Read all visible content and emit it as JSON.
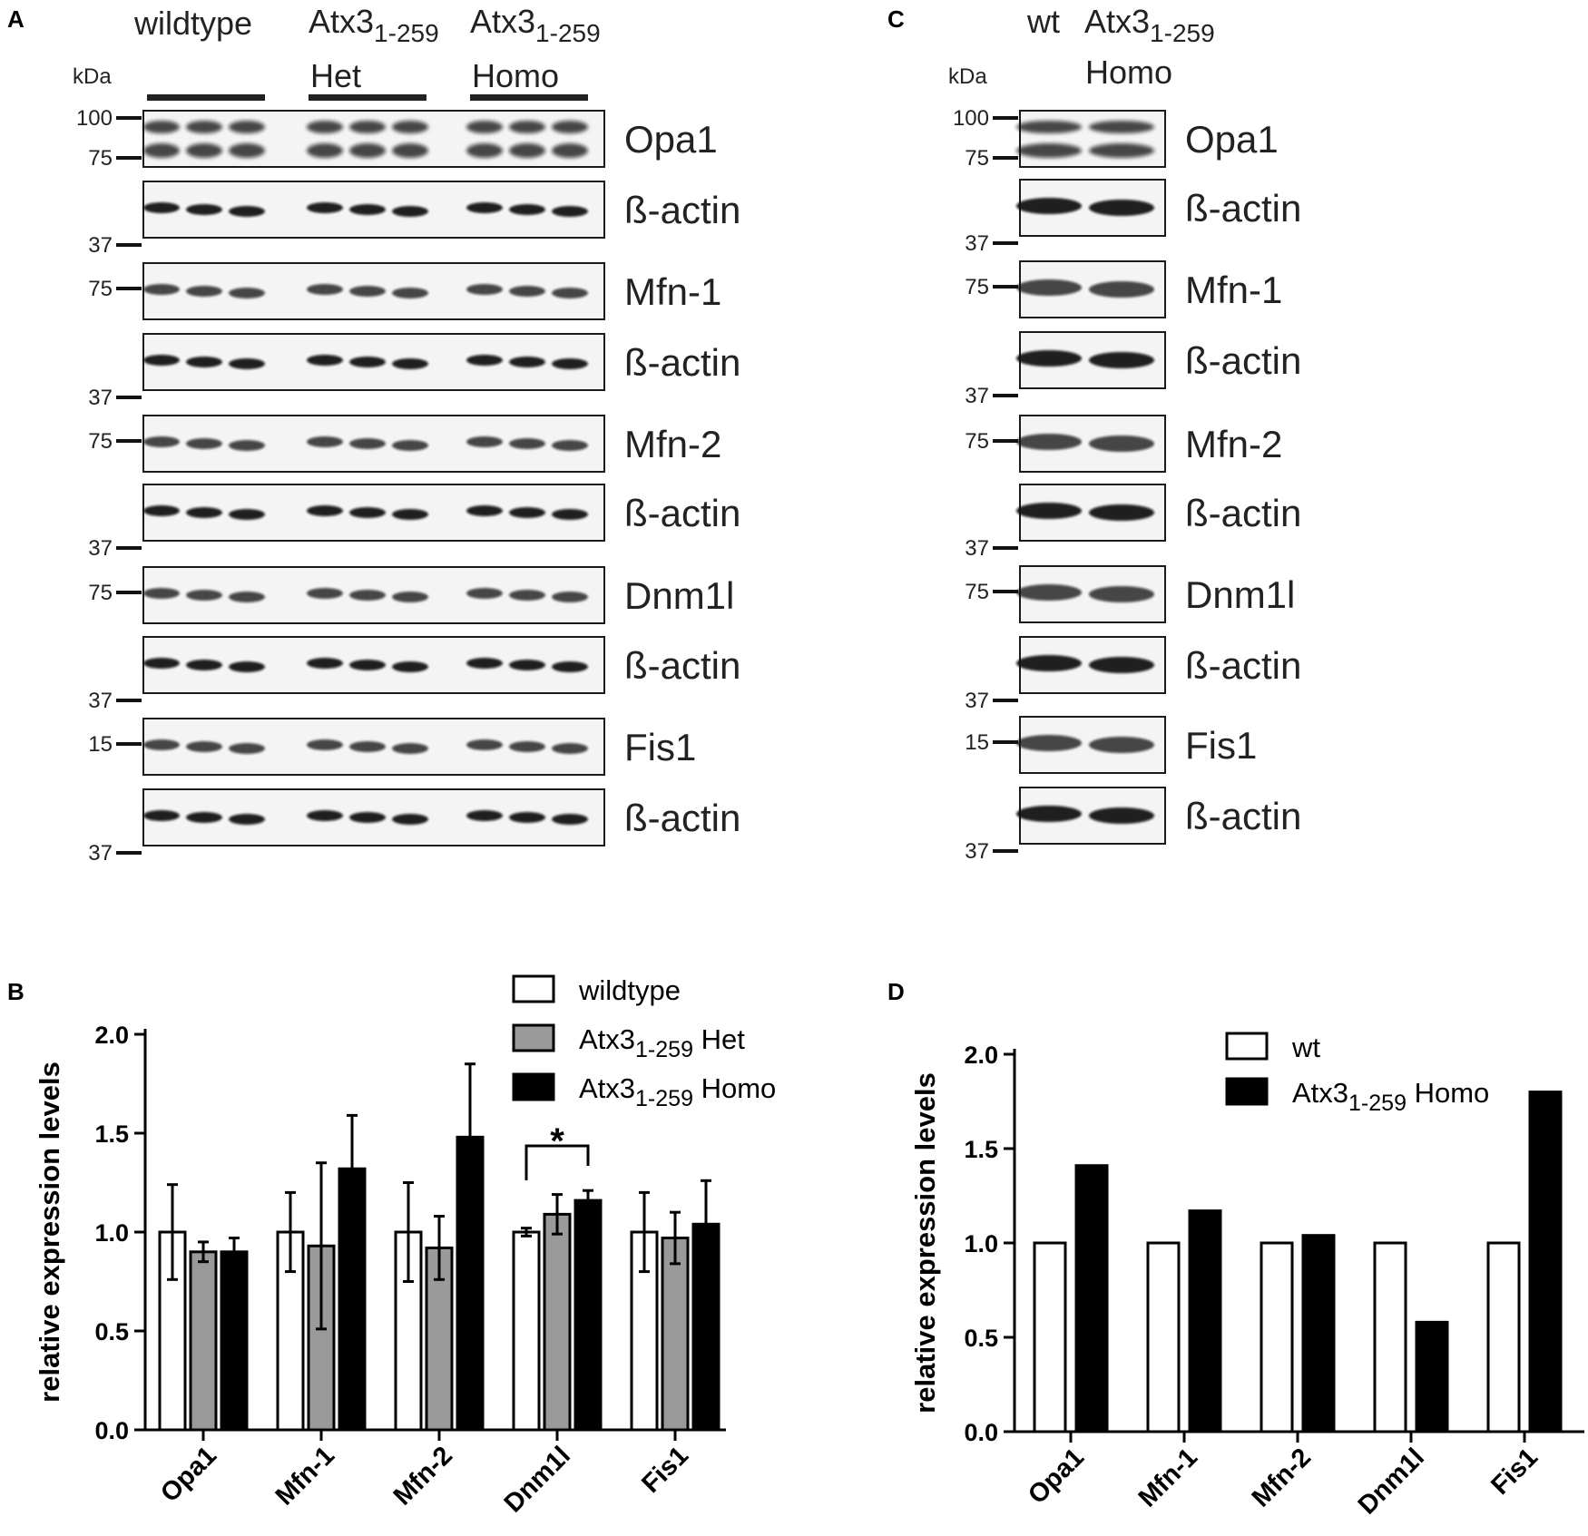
{
  "panel_a": {
    "letter": "A",
    "kda_label": "kDa",
    "groups": [
      {
        "line1": "wildtype",
        "line1_sub": "",
        "line1_post": "",
        "line2": ""
      },
      {
        "line1": "Atx3",
        "line1_sub": "1-259",
        "line1_post": "",
        "line2": "Het"
      },
      {
        "line1": "Atx3",
        "line1_sub": "1-259",
        "line1_post": "",
        "line2": "Homo"
      }
    ],
    "lanes_per_group": 3,
    "blots": [
      {
        "label": "Opa1",
        "markers": [
          "100",
          "75"
        ],
        "bands": "double"
      },
      {
        "label": "ß-actin",
        "markers": [
          "37"
        ],
        "bands": "single"
      },
      {
        "label": "Mfn-1",
        "markers": [
          "75"
        ],
        "bands": "single"
      },
      {
        "label": "ß-actin",
        "markers": [
          "37"
        ],
        "bands": "single"
      },
      {
        "label": "Mfn-2",
        "markers": [
          "75"
        ],
        "bands": "single"
      },
      {
        "label": "ß-actin",
        "markers": [
          "37"
        ],
        "bands": "single"
      },
      {
        "label": "Dnm1l",
        "markers": [
          "75"
        ],
        "bands": "single"
      },
      {
        "label": "ß-actin",
        "markers": [
          "37"
        ],
        "bands": "single"
      },
      {
        "label": "Fis1",
        "markers": [
          "15"
        ],
        "bands": "single"
      },
      {
        "label": "ß-actin",
        "markers": [
          "37"
        ],
        "bands": "single"
      }
    ]
  },
  "panel_c": {
    "letter": "C",
    "kda_label": "kDa",
    "header_wt": "wt",
    "header_mut": "Atx3",
    "header_mut_sub": "1-259",
    "header_mut_line2": "Homo",
    "blots": [
      {
        "label": "Opa1",
        "markers": [
          "100",
          "75"
        ],
        "bands": "double"
      },
      {
        "label": "ß-actin",
        "markers": [
          "37"
        ],
        "bands": "single"
      },
      {
        "label": "Mfn-1",
        "markers": [
          "75"
        ],
        "bands": "single"
      },
      {
        "label": "ß-actin",
        "markers": [
          "37"
        ],
        "bands": "single"
      },
      {
        "label": "Mfn-2",
        "markers": [
          "75"
        ],
        "bands": "single"
      },
      {
        "label": "ß-actin",
        "markers": [
          "37"
        ],
        "bands": "single"
      },
      {
        "label": "Dnm1l",
        "markers": [
          "75"
        ],
        "bands": "single"
      },
      {
        "label": "ß-actin",
        "markers": [
          "37"
        ],
        "bands": "single"
      },
      {
        "label": "Fis1",
        "markers": [
          "15"
        ],
        "bands": "single"
      },
      {
        "label": "ß-actin",
        "markers": [
          "37"
        ],
        "bands": "single"
      }
    ]
  },
  "chart_data": [
    {
      "panel": "B",
      "type": "bar",
      "title": "",
      "xlabel": "",
      "ylabel": "relative expression levels",
      "ylim": [
        0,
        2.0
      ],
      "yticks": [
        "0.0",
        "0.5",
        "1.0",
        "1.5",
        "2.0"
      ],
      "categories": [
        "Opa1",
        "Mfn-1",
        "Mfn-2",
        "Dnm1l",
        "Fis1"
      ],
      "series": [
        {
          "name": "wildtype",
          "legend_sub": "",
          "legend_post": "",
          "fill": "#ffffff",
          "values": [
            1.0,
            1.0,
            1.0,
            1.0,
            1.0
          ],
          "error": [
            0.24,
            0.2,
            0.25,
            0.02,
            0.2
          ]
        },
        {
          "name": "Atx3",
          "legend_sub": "1-259",
          "legend_post": " Het",
          "fill": "#9a9a9a",
          "values": [
            0.9,
            0.93,
            0.92,
            1.09,
            0.97
          ],
          "error": [
            0.05,
            0.42,
            0.16,
            0.1,
            0.13
          ]
        },
        {
          "name": "Atx3",
          "legend_sub": "1-259",
          "legend_post": " Homo",
          "fill": "#000000",
          "values": [
            0.9,
            1.32,
            1.48,
            1.16,
            1.04
          ],
          "error": [
            0.07,
            0.27,
            0.37,
            0.05,
            0.22
          ]
        }
      ],
      "significance": {
        "label": "*",
        "category": "Dnm1l",
        "from_series": 0,
        "to_series": 2
      },
      "legend_position": "top-right"
    },
    {
      "panel": "D",
      "type": "bar",
      "title": "",
      "xlabel": "",
      "ylabel": "relative expression levels",
      "ylim": [
        0,
        2.0
      ],
      "yticks": [
        "0.0",
        "0.5",
        "1.0",
        "1.5",
        "2.0"
      ],
      "categories": [
        "Opa1",
        "Mfn-1",
        "Mfn-2",
        "Dnm1l",
        "Fis1"
      ],
      "series": [
        {
          "name": "wt",
          "legend_sub": "",
          "legend_post": "",
          "fill": "#ffffff",
          "values": [
            1.0,
            1.0,
            1.0,
            1.0,
            1.0
          ]
        },
        {
          "name": "Atx3",
          "legend_sub": "1-259",
          "legend_post": " Homo",
          "fill": "#000000",
          "values": [
            1.41,
            1.17,
            1.04,
            0.58,
            1.8
          ]
        }
      ],
      "legend_position": "top-right"
    }
  ],
  "panel_letters": {
    "b": "B",
    "d": "D"
  }
}
